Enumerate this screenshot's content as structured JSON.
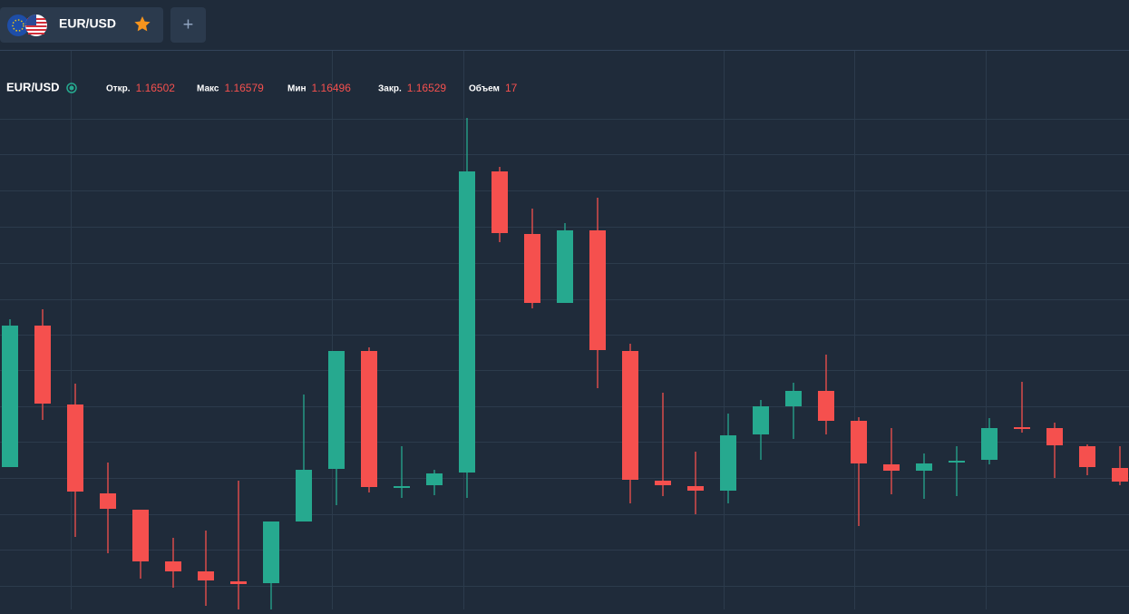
{
  "tab": {
    "label": "EUR/USD",
    "add": "+"
  },
  "legend": {
    "symbol": "EUR/USD",
    "items": [
      {
        "label": "Откр.",
        "value": "1.16502"
      },
      {
        "label": "Макс",
        "value": "1.16579"
      },
      {
        "label": "Мин",
        "value": "1.16496"
      },
      {
        "label": "Закр.",
        "value": "1.16529"
      },
      {
        "label": "Объем",
        "value": "17"
      }
    ]
  },
  "chart_data": {
    "type": "candlestick",
    "up_color": "#26a98f",
    "down_color": "#f5504e",
    "ylim": [
      0,
      592
    ],
    "open": [
      157,
      313,
      226,
      128,
      110,
      53,
      42,
      31,
      29,
      97,
      155,
      285,
      134,
      137,
      151,
      483,
      414,
      338,
      418,
      285,
      142,
      136,
      131,
      193,
      224,
      241,
      208,
      160,
      153,
      162,
      165,
      201,
      200,
      180,
      156
    ],
    "high": [
      320,
      331,
      249,
      162,
      110,
      79,
      87,
      142,
      97,
      237,
      285,
      289,
      180,
      154,
      542,
      488,
      442,
      426,
      454,
      293,
      239,
      174,
      216,
      231,
      250,
      281,
      212,
      200,
      172,
      180,
      211,
      251,
      206,
      182,
      180
    ],
    "low": [
      157,
      209,
      80,
      62,
      34,
      24,
      4,
      0,
      0,
      97,
      115,
      129,
      123,
      126,
      123,
      405,
      332,
      338,
      244,
      117,
      125,
      105,
      117,
      165,
      188,
      193,
      92,
      127,
      122,
      125,
      160,
      195,
      145,
      148,
      137
    ],
    "close": [
      313,
      227,
      130,
      111,
      53,
      42,
      32,
      28,
      97,
      154,
      285,
      135,
      136,
      150,
      483,
      415,
      338,
      418,
      286,
      143,
      137,
      131,
      192,
      224,
      241,
      208,
      161,
      153,
      161,
      164,
      200,
      200,
      181,
      157,
      141
    ]
  }
}
